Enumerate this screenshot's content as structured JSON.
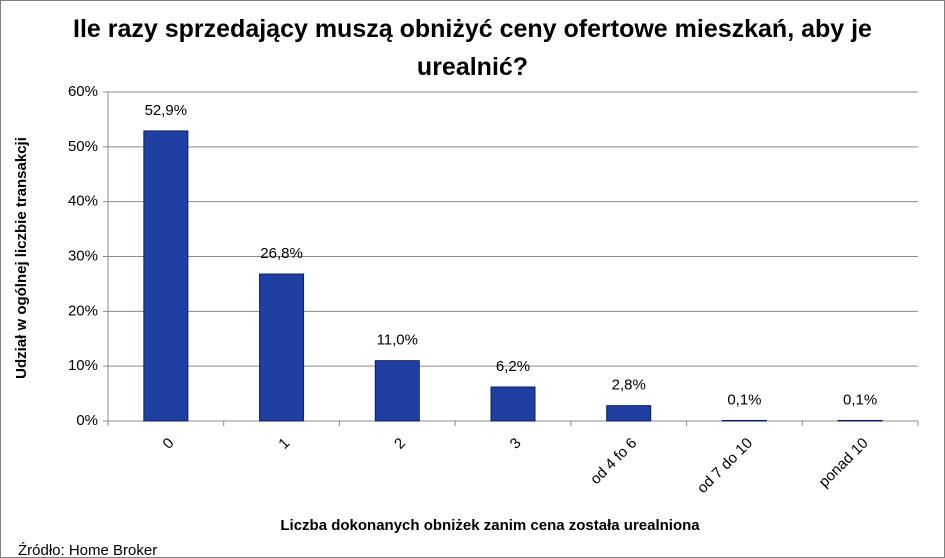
{
  "chart_data": {
    "type": "bar",
    "title": "Ile razy sprzedający muszą obniżyć ceny ofertowe mieszkań, aby je urealnić?",
    "x_label": "Liczba dokonanych obniżek zanim cena została urealniona",
    "y_label": "Udział w ogólnej liczbie transakcji",
    "source": "Źródło: Home Broker",
    "categories": [
      "0",
      "1",
      "2",
      "3",
      "od 4 fo 6",
      "od 7 do 10",
      "ponad 10"
    ],
    "values": [
      52.9,
      26.8,
      11.0,
      6.2,
      2.8,
      0.1,
      0.1
    ],
    "value_labels": [
      "52,9%",
      "26,8%",
      "11,0%",
      "6,2%",
      "2,8%",
      "0,1%",
      "0,1%"
    ],
    "color": "#1f3fa3",
    "ylim": [
      0,
      60
    ],
    "yticks": [
      {
        "value": 0,
        "label": "0%"
      },
      {
        "value": 10,
        "label": "10%"
      },
      {
        "value": 20,
        "label": "20%"
      },
      {
        "value": 30,
        "label": "30%"
      },
      {
        "value": 40,
        "label": "40%"
      },
      {
        "value": 50,
        "label": "50%"
      },
      {
        "value": 60,
        "label": "60%"
      }
    ],
    "grid": true
  }
}
